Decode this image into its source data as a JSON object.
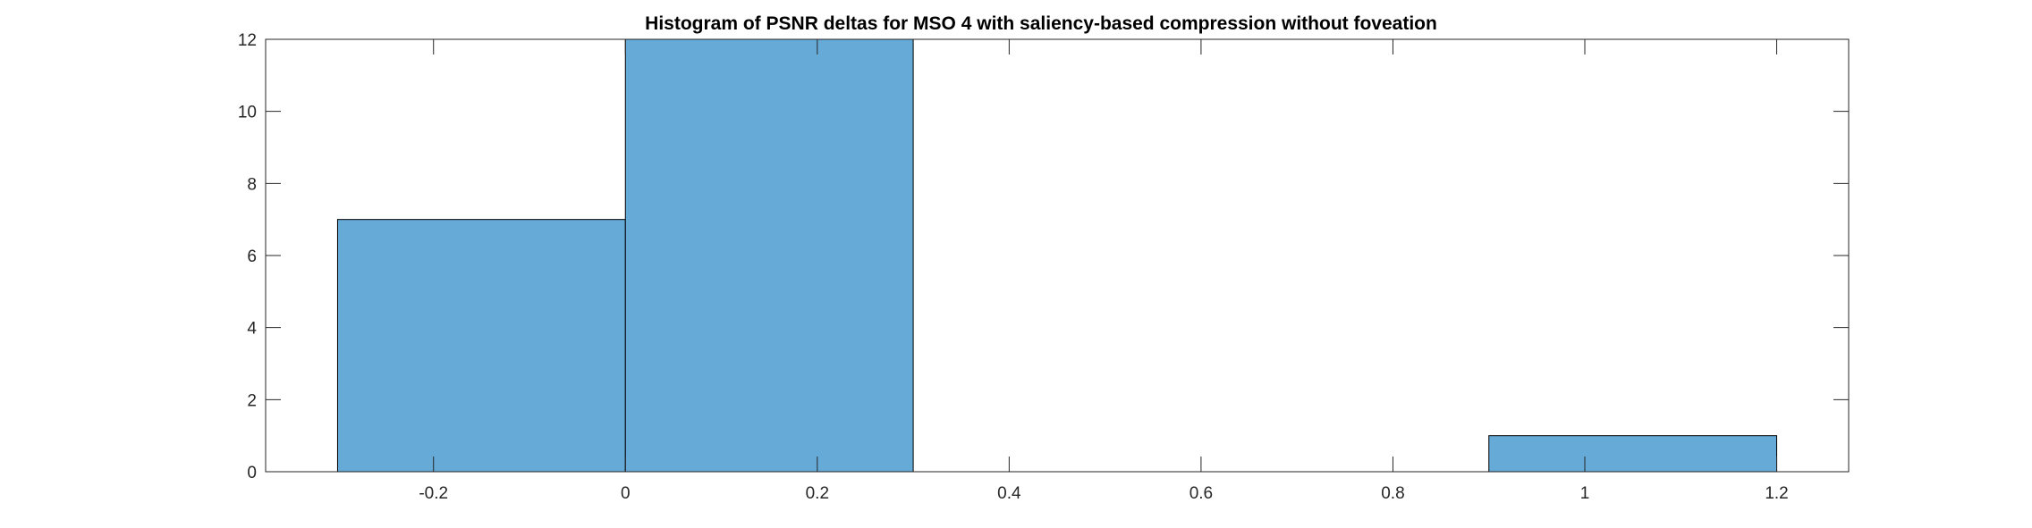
{
  "chart_data": {
    "type": "bar",
    "subtype": "histogram",
    "title": "Histogram of PSNR deltas for MSO 4 with saliency-based compression without foveation",
    "xlabel": "",
    "ylabel": "",
    "bins": [
      {
        "start": -0.3,
        "end": 0.0,
        "count": 7
      },
      {
        "start": 0.0,
        "end": 0.3,
        "count": 12
      },
      {
        "start": 0.3,
        "end": 0.6,
        "count": 0
      },
      {
        "start": 0.6,
        "end": 0.9,
        "count": 0
      },
      {
        "start": 0.9,
        "end": 1.2,
        "count": 1
      }
    ],
    "xlim": [
      -0.375,
      1.275
    ],
    "ylim": [
      0,
      12
    ],
    "xticks": [
      -0.2,
      0,
      0.2,
      0.4,
      0.6,
      0.8,
      1,
      1.2
    ],
    "xtick_labels": [
      "-0.2",
      "0",
      "0.2",
      "0.4",
      "0.6",
      "0.8",
      "1",
      "1.2"
    ],
    "yticks": [
      0,
      2,
      4,
      6,
      8,
      10,
      12
    ],
    "ytick_labels": [
      "0",
      "2",
      "4",
      "6",
      "8",
      "10",
      "12"
    ],
    "bar_color": "#66aad8",
    "edge_color": "#000000",
    "axis_color": "#262626",
    "grid": false,
    "box": true
  }
}
